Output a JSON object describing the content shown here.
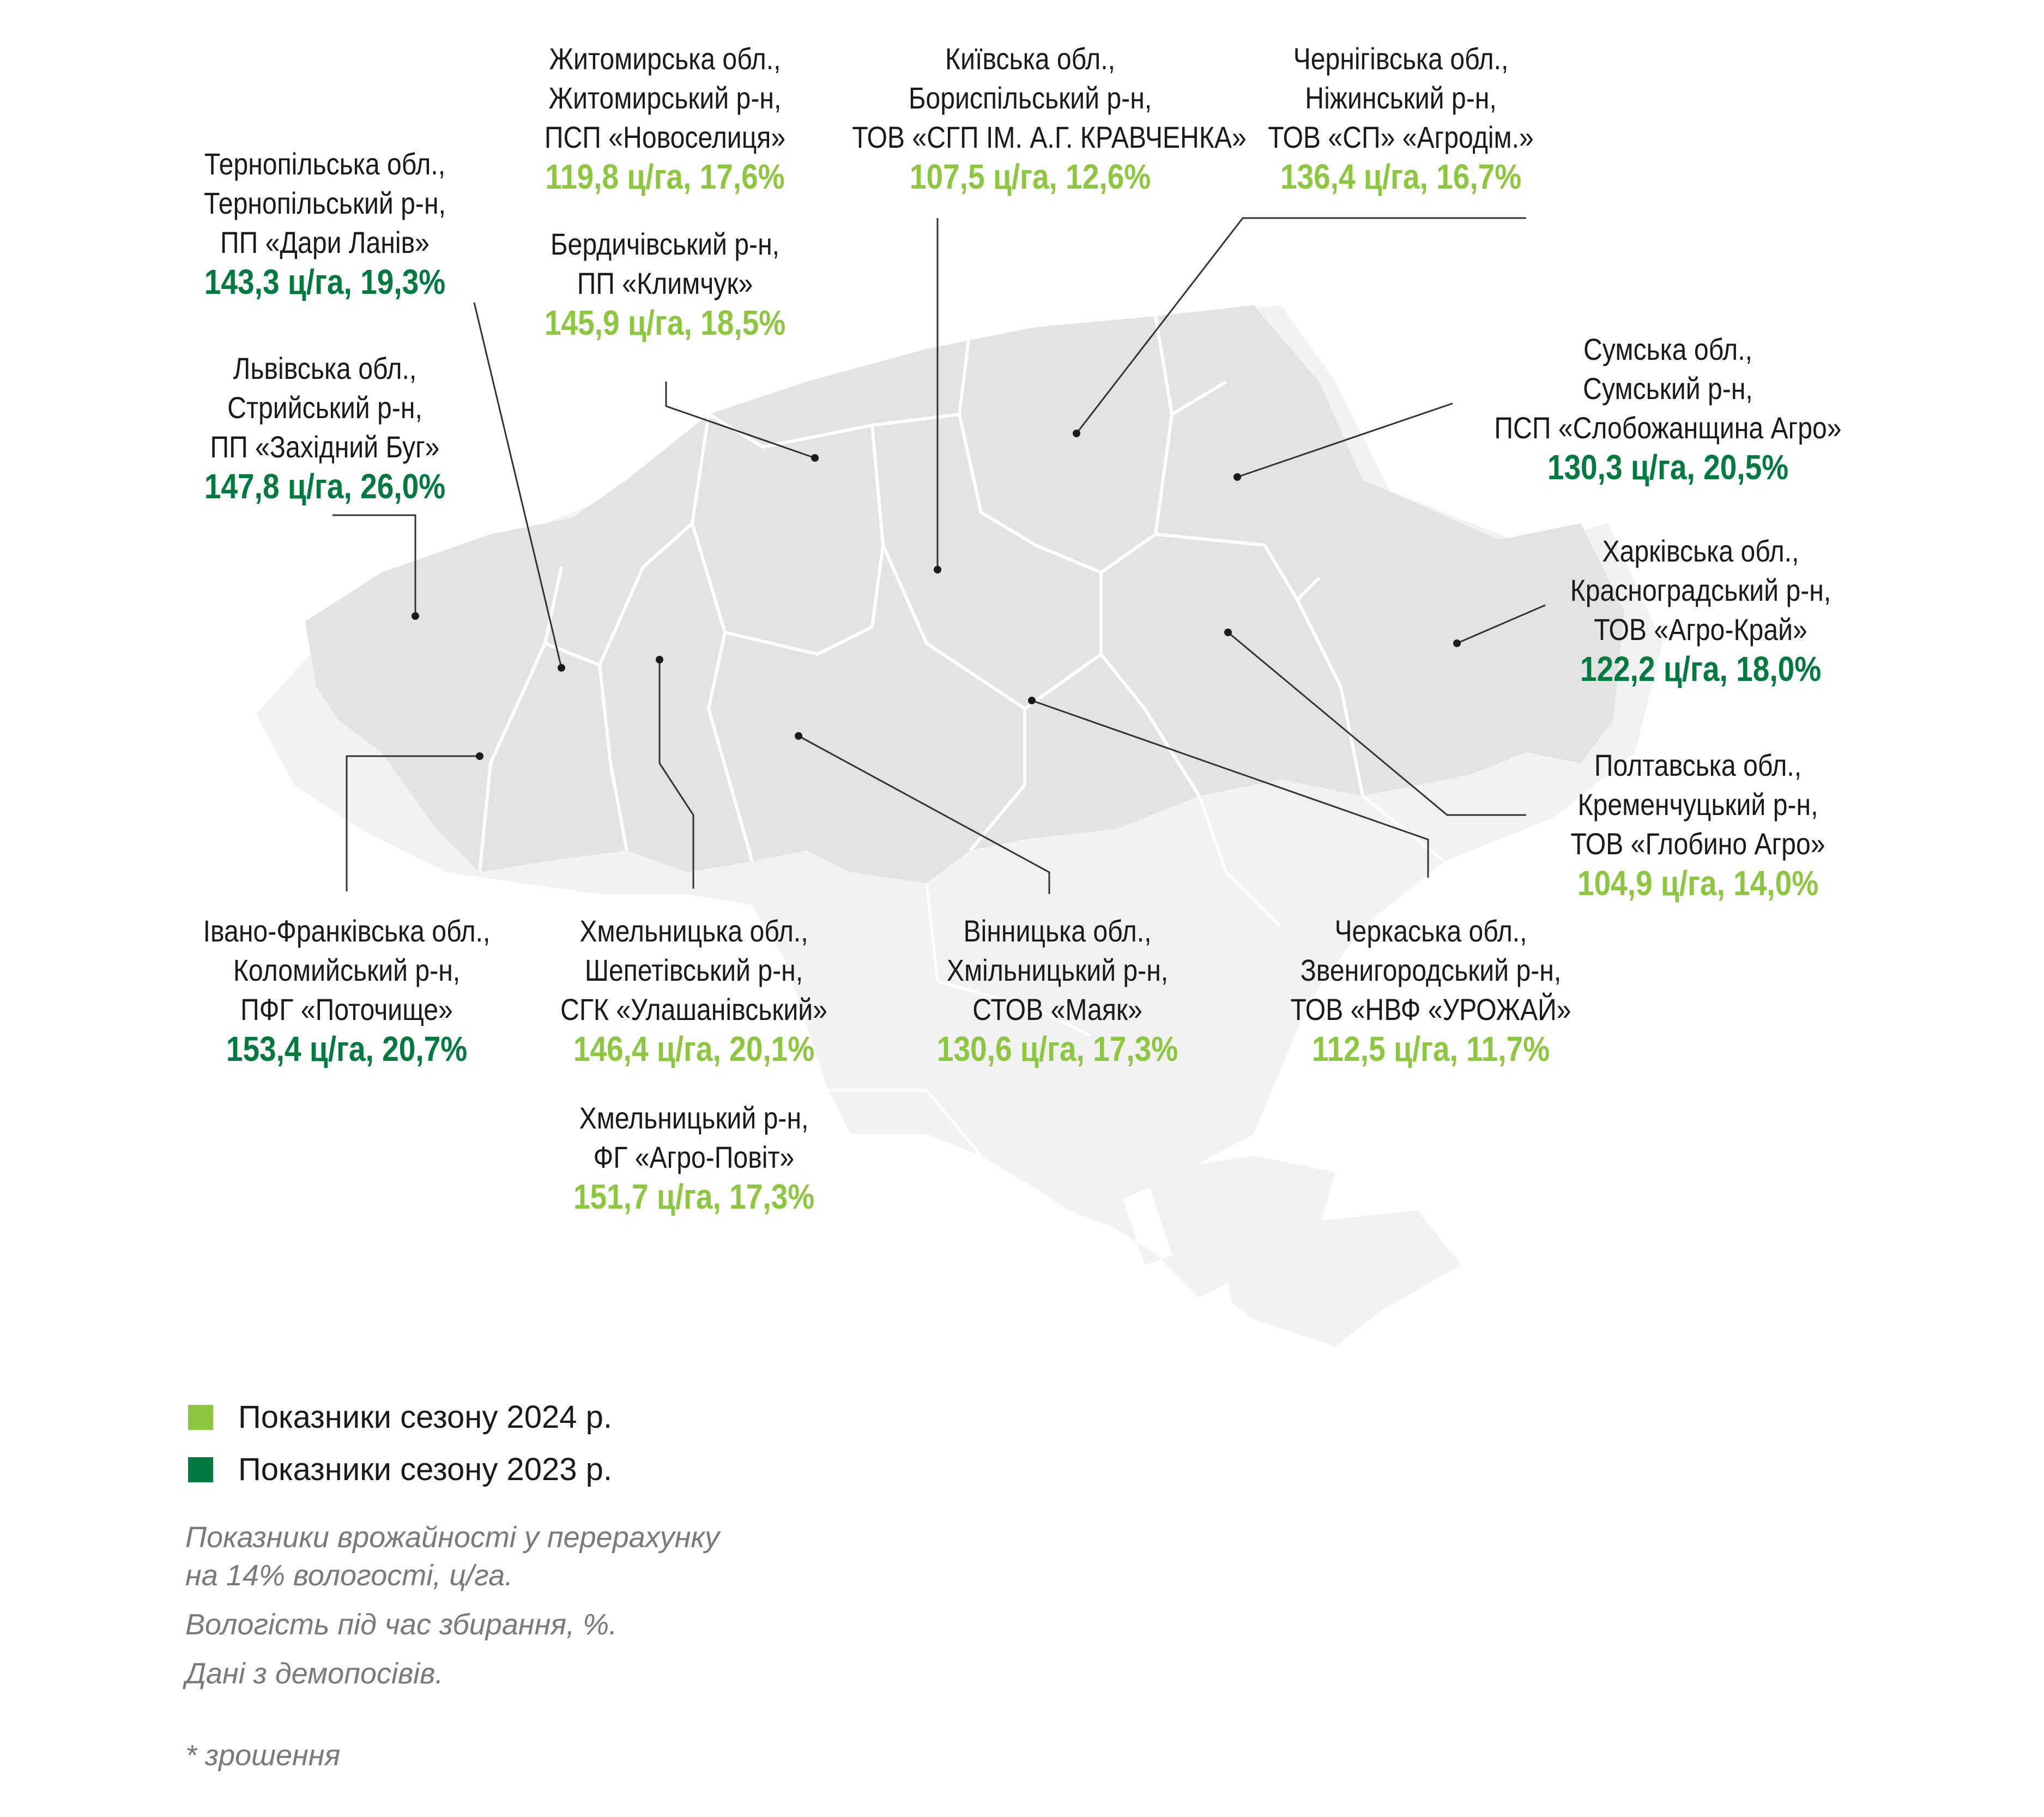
{
  "colors": {
    "season_2024": "#8dc63f",
    "season_2023": "#007a3e",
    "map_highlight": "#e3e3e3",
    "map_base": "#f2f2f2",
    "leader_line": "#333333"
  },
  "labels": [
    {
      "id": "zhytomyr",
      "lines": [
        "Житомирська обл.,",
        "Житомирський р-н,",
        "ПСП «Новоселиця»"
      ],
      "value": "119,8 ц/га, 17,6%",
      "season": "2024"
    },
    {
      "id": "kyiv",
      "lines": [
        "Київська обл.,",
        "Бориспільський р-н,",
        "ТОВ «СГП ІМ. А.Г. КРАВЧЕНКА»"
      ],
      "value": "107,5 ц/га, 12,6%",
      "season": "2024"
    },
    {
      "id": "chernihiv",
      "lines": [
        "Чернігівська обл.,",
        "Ніжинський р-н,",
        "ТОВ «СП» «Агродім.»"
      ],
      "value": "136,4 ц/га, 16,7%",
      "season": "2024"
    },
    {
      "id": "ternopil",
      "lines": [
        "Тернопільська обл.,",
        "Тернопільський р-н,",
        "ПП «Дари Ланів»"
      ],
      "value": "143,3 ц/га, 19,3%",
      "season": "2023"
    },
    {
      "id": "berdychiv",
      "lines": [
        "Бердичівський р-н,",
        "ПП «Климчук»"
      ],
      "value": "145,9 ц/га, 18,5%",
      "season": "2024"
    },
    {
      "id": "sumy",
      "lines": [
        "Сумська обл.,",
        "Сумський р-н,",
        "ПСП «Слобожанщина Агро»"
      ],
      "value": "130,3 ц/га, 20,5%",
      "season": "2023"
    },
    {
      "id": "lviv",
      "lines": [
        "Львівська обл.,",
        "Стрийський р-н,",
        "ПП «Західний Буг»"
      ],
      "value": "147,8 ц/га, 26,0%",
      "season": "2023"
    },
    {
      "id": "kharkiv",
      "lines": [
        "Харківська обл.,",
        "Красноградський р-н,",
        "ТОВ «Агро-Край»"
      ],
      "value": "122,2 ц/га, 18,0%",
      "season": "2023"
    },
    {
      "id": "poltava",
      "lines": [
        "Полтавська обл.,",
        "Кременчуцький р-н,",
        "ТОВ «Глобино Агро»"
      ],
      "value": "104,9 ц/га, 14,0%",
      "season": "2024"
    },
    {
      "id": "ivano_frankivsk",
      "lines": [
        "Івано-Франківська обл.,",
        "Коломийський р-н,",
        "ПФГ «Поточище»"
      ],
      "value": "153,4 ц/га, 20,7%",
      "season": "2023"
    },
    {
      "id": "khmelnytskyi_shepetivka",
      "lines": [
        "Хмельницька обл.,",
        "Шепетівський р-н,",
        "СГК «Улашанівський»"
      ],
      "value": "146,4 ц/га, 20,1%",
      "season": "2024"
    },
    {
      "id": "vinnytsia",
      "lines": [
        "Вінницька обл.,",
        "Хмільницький р-н,",
        "СТОВ «Маяк»"
      ],
      "value": "130,6 ц/га, 17,3%",
      "season": "2024"
    },
    {
      "id": "cherkasy",
      "lines": [
        "Черкаська обл.,",
        "Звенигородський р-н,",
        "ТОВ «НВФ «УРОЖАЙ»"
      ],
      "value": "112,5 ц/га, 11,7%",
      "season": "2024"
    },
    {
      "id": "khmelnytskyi",
      "lines": [
        "Хмельницький р-н,",
        "ФГ «Агро-Повіт»"
      ],
      "value": "151,7 ц/га, 17,3%",
      "season": "2024"
    }
  ],
  "legend": [
    {
      "season": "2024",
      "text": "Показники сезону 2024 р."
    },
    {
      "season": "2023",
      "text": "Показники сезону 2023 р."
    }
  ],
  "notes": {
    "yield_line1": "Показники врожайності у перерахунку",
    "yield_line2": "на 14% вологості, ц/га.",
    "moisture": "Вологість під час збирання, %.",
    "source": "Дані з демопосівів.",
    "footnote": "* зрошення"
  }
}
